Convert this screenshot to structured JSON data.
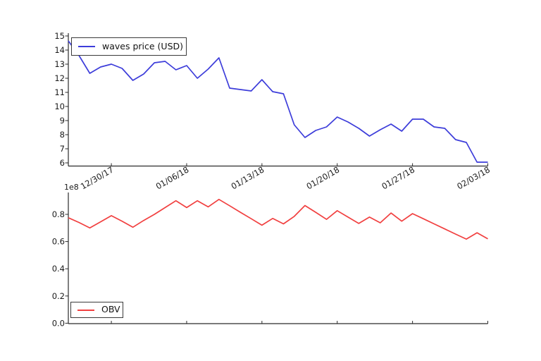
{
  "figure": {
    "background": "#ffffff",
    "spine_color": "#2b2b2b",
    "text_color": "#1a1a1a"
  },
  "chart_data": [
    {
      "type": "line",
      "name": "waves-price-chart",
      "legend": "waves price (USD)",
      "legend_position": "upper left",
      "color": "#3d3dda",
      "grid": false,
      "xlabel": "",
      "ylabel": "",
      "x_tick_labels": [
        "12/30/17",
        "01/06/18",
        "01/13/18",
        "01/20/18",
        "01/27/18",
        "02/03/18"
      ],
      "x_tick_indices": [
        4,
        11,
        18,
        25,
        32,
        39
      ],
      "y_tick_labels": [
        "6",
        "7",
        "8",
        "9",
        "10",
        "11",
        "12",
        "13",
        "14",
        "15"
      ],
      "y_ticks": [
        6,
        7,
        8,
        9,
        10,
        11,
        12,
        13,
        14,
        15
      ],
      "ylim": [
        5.8,
        15.2
      ],
      "values": [
        14.65,
        13.6,
        12.35,
        12.8,
        13.0,
        12.7,
        11.85,
        12.3,
        13.1,
        13.2,
        12.6,
        12.9,
        12.0,
        12.65,
        13.45,
        11.3,
        11.2,
        11.1,
        11.9,
        11.05,
        10.9,
        8.7,
        7.8,
        8.3,
        8.55,
        9.25,
        8.9,
        8.45,
        7.9,
        8.35,
        8.75,
        8.25,
        9.1,
        9.1,
        8.55,
        8.45,
        7.65,
        7.45,
        6.05,
        6.05
      ]
    },
    {
      "type": "line",
      "name": "obv-chart",
      "legend": "OBV",
      "legend_position": "lower left",
      "color": "#f14040",
      "grid": false,
      "xlabel": "",
      "ylabel": "",
      "y_offset_label": "1e8",
      "x_tick_labels": [],
      "x_tick_indices": [
        4,
        11,
        18,
        25,
        32,
        39
      ],
      "y_tick_labels": [
        "0.0",
        "0.2",
        "0.4",
        "0.6",
        "0.8"
      ],
      "y_ticks": [
        0.0,
        0.2,
        0.4,
        0.6,
        0.8
      ],
      "ylim": [
        0,
        0.97
      ],
      "values": [
        0.775,
        0.74,
        0.7,
        0.745,
        0.79,
        0.75,
        0.705,
        0.755,
        0.8,
        0.85,
        0.9,
        0.85,
        0.9,
        0.855,
        0.91,
        0.863,
        0.815,
        0.768,
        0.72,
        0.77,
        0.73,
        0.785,
        0.865,
        0.815,
        0.763,
        0.827,
        0.78,
        0.733,
        0.78,
        0.738,
        0.81,
        0.75,
        0.805,
        0.768,
        0.73,
        0.693,
        0.655,
        0.618,
        0.665,
        0.62
      ]
    }
  ]
}
